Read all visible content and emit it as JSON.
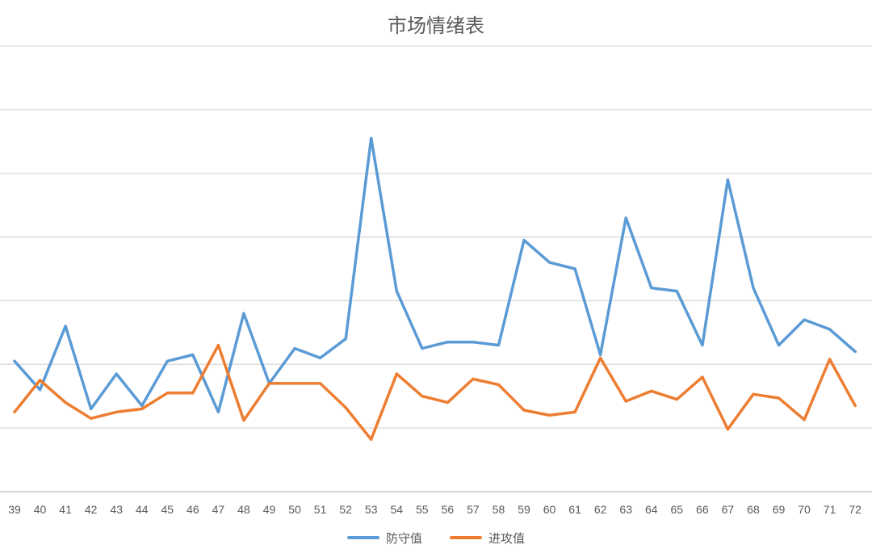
{
  "chart_data": {
    "type": "line",
    "title": "市场情绪表",
    "xlabel": "",
    "ylabel": "",
    "grid": true,
    "legend_position": "bottom",
    "x": [
      "39",
      "40",
      "41",
      "42",
      "43",
      "44",
      "45",
      "46",
      "47",
      "48",
      "49",
      "50",
      "51",
      "52",
      "53",
      "54",
      "55",
      "56",
      "57",
      "58",
      "59",
      "60",
      "61",
      "62",
      "63",
      "64",
      "65",
      "66",
      "67",
      "68",
      "69",
      "70",
      "71",
      "72"
    ],
    "ylim": [
      0,
      7
    ],
    "series": [
      {
        "name": "防守值",
        "color": "#5B9BD5",
        "values": [
          2.05,
          1.6,
          2.6,
          1.3,
          1.85,
          1.35,
          2.05,
          2.15,
          1.25,
          2.8,
          1.7,
          2.25,
          2.1,
          2.4,
          5.55,
          3.15,
          2.25,
          2.35,
          2.35,
          2.3,
          3.95,
          3.6,
          3.5,
          2.15,
          4.3,
          3.2,
          3.15,
          2.3,
          4.9,
          3.2,
          2.3,
          2.7,
          2.55,
          2.2
        ]
      },
      {
        "name": "进攻值",
        "color": "#ED7D31",
        "values": [
          1.25,
          1.75,
          1.4,
          1.15,
          1.25,
          1.3,
          1.55,
          1.55,
          2.3,
          1.12,
          1.7,
          1.7,
          1.7,
          1.32,
          0.82,
          1.85,
          1.5,
          1.4,
          1.77,
          1.68,
          1.28,
          1.2,
          1.25,
          2.1,
          1.42,
          1.58,
          1.45,
          1.8,
          0.98,
          1.53,
          1.47,
          1.13,
          2.08,
          1.35
        ]
      }
    ]
  }
}
